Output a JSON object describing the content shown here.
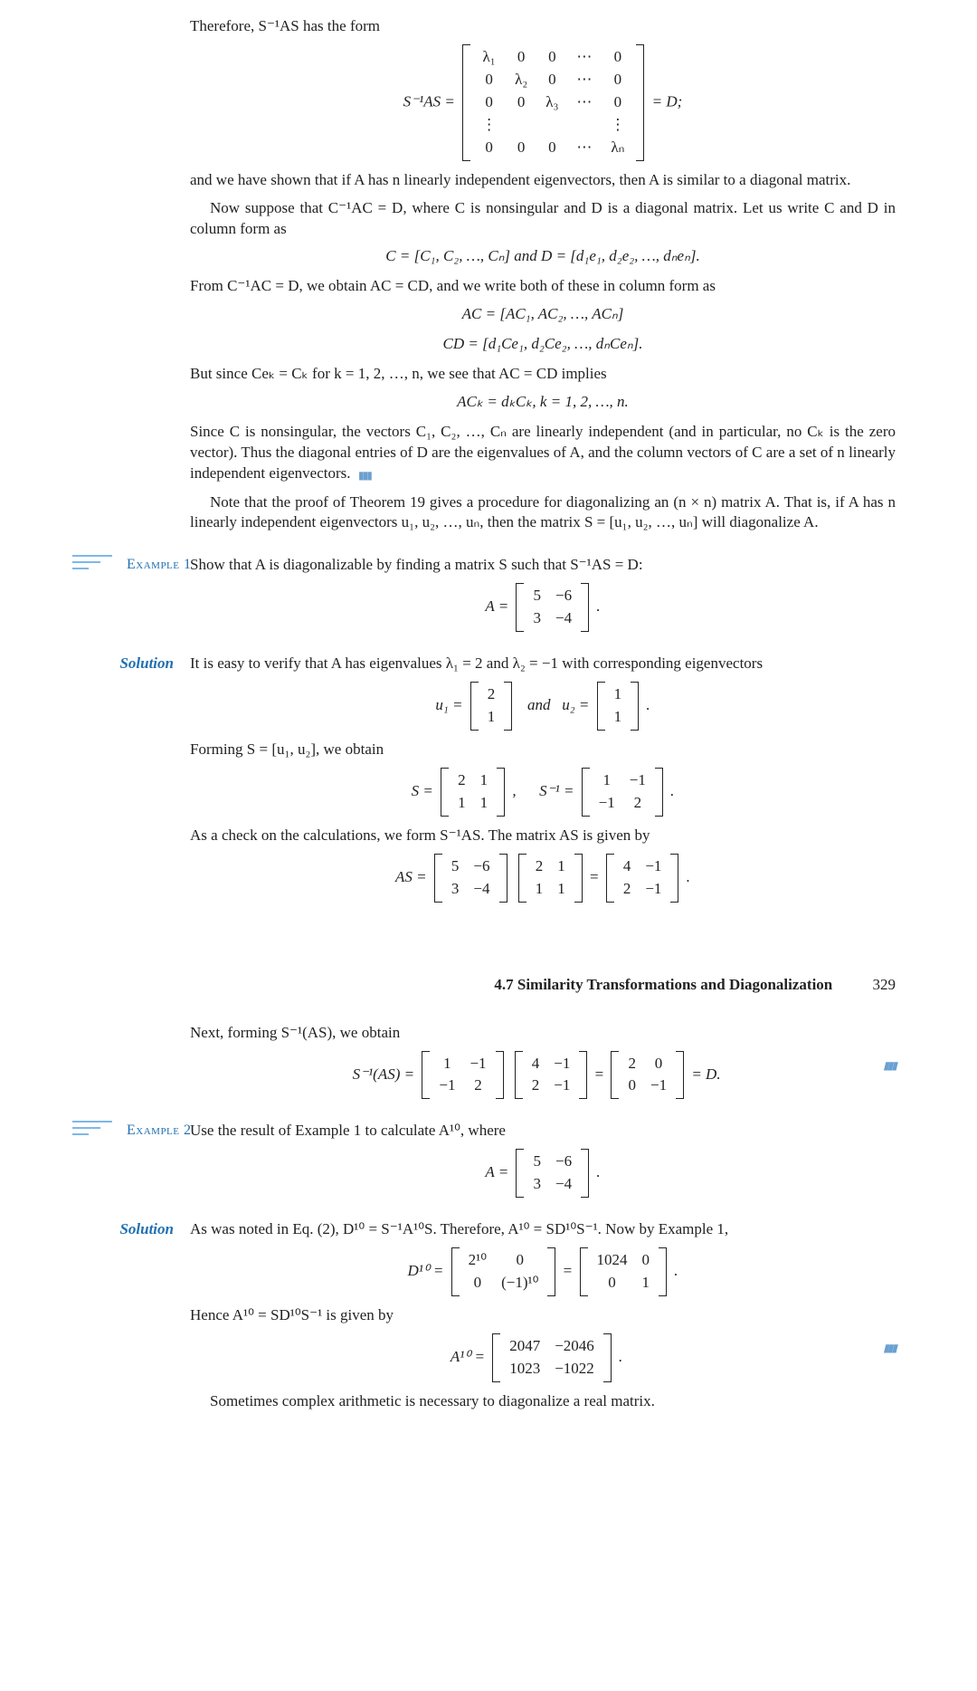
{
  "intro": "Therefore, S⁻¹AS has the form",
  "bigmatrix_label": "S⁻¹AS =",
  "bigmatrix_tail": "= D;",
  "bigmatrix": [
    [
      "λ₁",
      "0",
      "0",
      "⋯",
      "0"
    ],
    [
      "0",
      "λ₂",
      "0",
      "⋯",
      "0"
    ],
    [
      "0",
      "0",
      "λ₃",
      "⋯",
      "0"
    ],
    [
      "⋮",
      "",
      "",
      "",
      "⋮"
    ],
    [
      "0",
      "0",
      "0",
      "⋯",
      "λₙ"
    ]
  ],
  "p1": "and we have shown that if A has n linearly independent eigenvectors, then A is similar to a diagonal matrix.",
  "p2": "Now suppose that C⁻¹AC = D, where C is nonsingular and D is a diagonal matrix. Let us write C and D in column form as",
  "eq_CD": "C = [C₁, C₂, …, Cₙ]   and   D = [d₁e₁, d₂e₂, …, dₙeₙ].",
  "p3": "From C⁻¹AC = D, we obtain AC = CD, and we write both of these in column form as",
  "eq_AC": "AC = [AC₁, AC₂, …, ACₙ]",
  "eq_CDcol": "CD = [d₁Ce₁, d₂Ce₂, …, dₙCeₙ].",
  "p4": "But since Ceₖ = Cₖ for k = 1, 2, …, n, we see that AC = CD implies",
  "eq_ACk": "ACₖ = dₖCₖ,   k = 1, 2, …, n.",
  "p5": "Since C is nonsingular, the vectors C₁, C₂, …, Cₙ are linearly independent (and in particular, no Cₖ is the zero vector). Thus the diagonal entries of D are the eigenvalues of A, and the column vectors of C are a set of n linearly independent eigenvectors.",
  "p6": "Note that the proof of Theorem 19 gives a procedure for diagonalizing an (n × n) matrix A. That is, if A has n linearly independent eigenvectors u₁, u₂, …, uₙ, then the matrix S = [u₁, u₂, …, uₙ] will diagonalize A.",
  "ex1_label": "Example 1",
  "ex1_text": "Show that A is diagonalizable by finding a matrix S such that S⁻¹AS = D:",
  "ex1_A": {
    "pre": "A =",
    "rows": [
      [
        "5",
        "−6"
      ],
      [
        "3",
        "−4"
      ]
    ],
    "post": "."
  },
  "sol_label": "Solution",
  "sol1_p1": "It is easy to verify that A has eigenvalues λ₁ = 2 and λ₂ = −1 with corresponding eigenvectors",
  "u1": {
    "pre": "u₁ =",
    "rows": [
      [
        "2"
      ],
      [
        "1"
      ]
    ]
  },
  "u_and": "and",
  "u2": {
    "pre": "u₂ =",
    "rows": [
      [
        "1"
      ],
      [
        "1"
      ]
    ],
    "post": "."
  },
  "sol1_p2": "Forming S = [u₁, u₂], we obtain",
  "S": {
    "pre": "S =",
    "rows": [
      [
        "2",
        "1"
      ],
      [
        "1",
        "1"
      ]
    ],
    "post": ","
  },
  "Sinv": {
    "pre": "S⁻¹ =",
    "rows": [
      [
        "1",
        "−1"
      ],
      [
        "−1",
        "2"
      ]
    ],
    "post": "."
  },
  "sol1_p3": "As a check on the calculations, we form S⁻¹AS. The matrix AS is given by",
  "AS_pre": "AS =",
  "AS_m1": [
    [
      "5",
      "−6"
    ],
    [
      "3",
      "−4"
    ]
  ],
  "AS_m2": [
    [
      "2",
      "1"
    ],
    [
      "1",
      "1"
    ]
  ],
  "AS_m3": [
    [
      "4",
      "−1"
    ],
    [
      "2",
      "−1"
    ]
  ],
  "AS_post": ".",
  "sec_title": "4.7 Similarity Transformations and Diagonalization",
  "page_num": "329",
  "sol1_p4": "Next, forming S⁻¹(AS), we obtain",
  "SAS_pre": "S⁻¹(AS) =",
  "SAS_m1": [
    [
      "1",
      "−1"
    ],
    [
      "−1",
      "2"
    ]
  ],
  "SAS_m2": [
    [
      "4",
      "−1"
    ],
    [
      "2",
      "−1"
    ]
  ],
  "SAS_m3": [
    [
      "2",
      "0"
    ],
    [
      "0",
      "−1"
    ]
  ],
  "SAS_post": "= D.",
  "ex2_label": "Example 2",
  "ex2_text": "Use the result of Example 1 to calculate A¹⁰, where",
  "ex2_A": {
    "pre": "A =",
    "rows": [
      [
        "5",
        "−6"
      ],
      [
        "3",
        "−4"
      ]
    ],
    "post": "."
  },
  "sol2_p1": "As was noted in Eq. (2), D¹⁰ = S⁻¹A¹⁰S. Therefore, A¹⁰ = SD¹⁰S⁻¹. Now by Example 1,",
  "D10_pre": "D¹⁰ =",
  "D10_m1": [
    [
      "2¹⁰",
      "0"
    ],
    [
      "0",
      "(−1)¹⁰"
    ]
  ],
  "D10_m2": [
    [
      "1024",
      "0"
    ],
    [
      "0",
      "1"
    ]
  ],
  "D10_post": ".",
  "sol2_p2": "Hence A¹⁰ = SD¹⁰S⁻¹ is given by",
  "A10_pre": "A¹⁰ =",
  "A10_m": [
    [
      "2047",
      "−2046"
    ],
    [
      "1023",
      "−1022"
    ]
  ],
  "A10_post": ".",
  "sol2_p3": "Sometimes complex arithmetic is necessary to diagonalize a real matrix."
}
